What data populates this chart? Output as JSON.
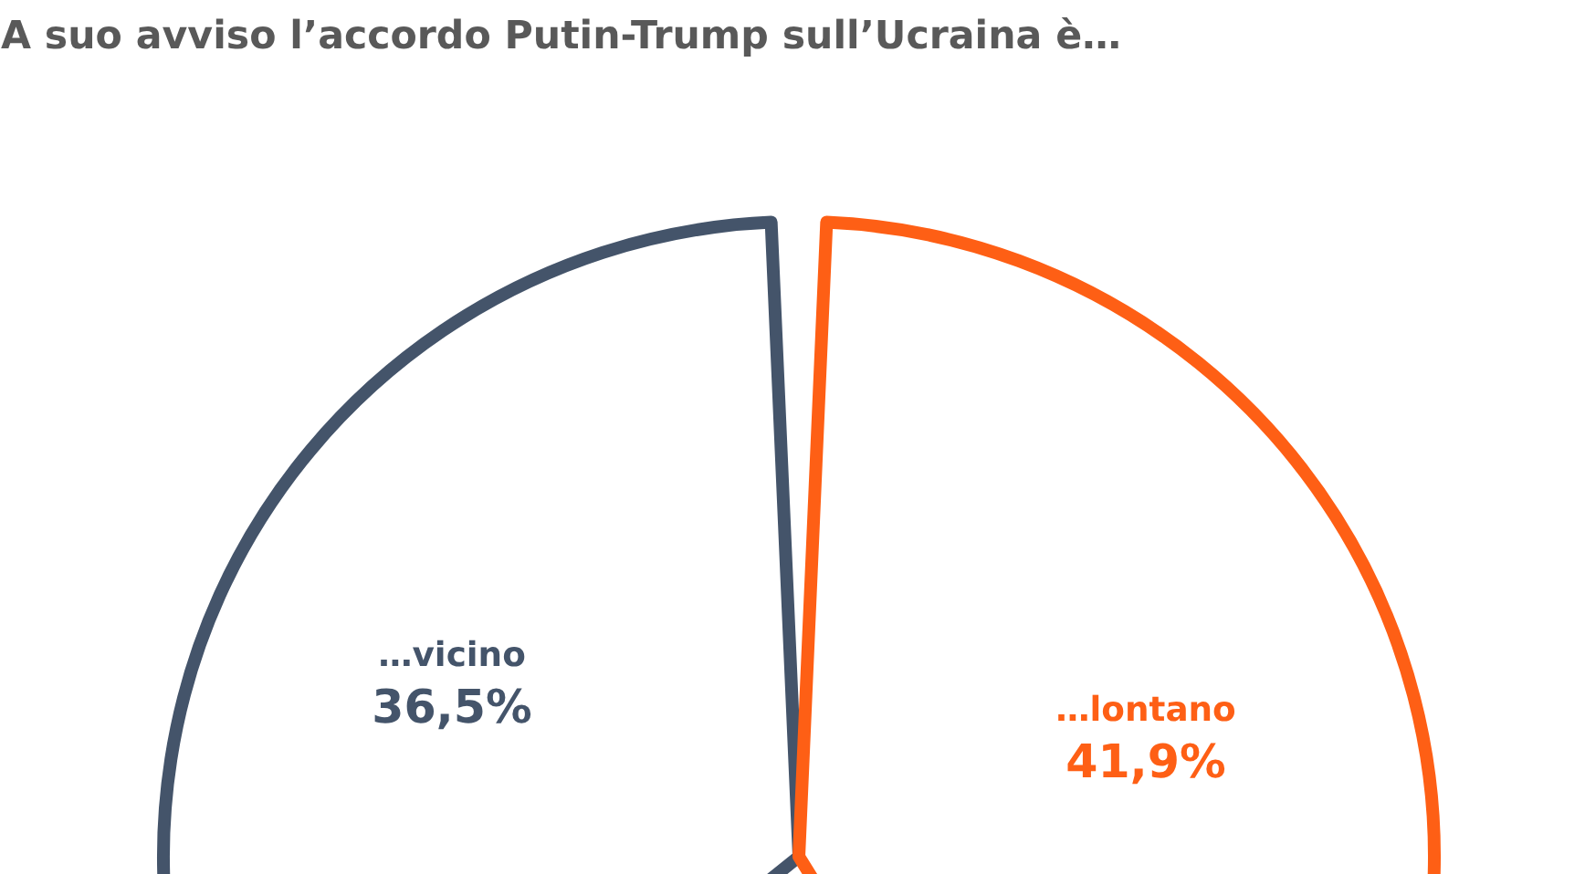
{
  "chart_data": {
    "type": "pie",
    "title": "A suo avviso l’accordo Putin-Trump sull’Ucraina è…",
    "categories": [
      "…vicino",
      "…lontano"
    ],
    "values": [
      36.5,
      41.9
    ],
    "colors": [
      "#44546a",
      "#fe5f15"
    ],
    "value_labels": [
      "36,5%",
      "41,9%"
    ]
  }
}
